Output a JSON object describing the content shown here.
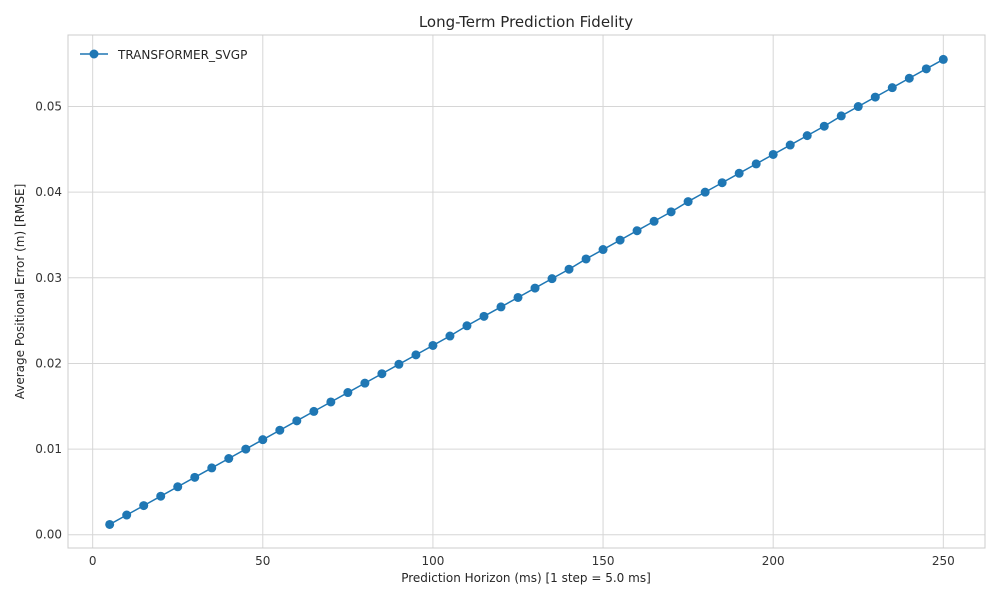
{
  "chart_data": {
    "type": "line",
    "title": "Long-Term Prediction Fidelity",
    "xlabel": "Prediction Horizon (ms)  [1 step = 5.0 ms]",
    "ylabel": "Average Positional Error (m) [RMSE]",
    "xlim": [
      -7.25,
      262.25
    ],
    "ylim": [
      -0.00155,
      0.05835
    ],
    "xticks": [
      0,
      50,
      100,
      150,
      200,
      250
    ],
    "xtick_labels": [
      "0",
      "50",
      "100",
      "150",
      "200",
      "250"
    ],
    "yticks": [
      0.0,
      0.01,
      0.02,
      0.03,
      0.04,
      0.05
    ],
    "ytick_labels": [
      "0.00",
      "0.01",
      "0.02",
      "0.03",
      "0.04",
      "0.05"
    ],
    "grid": true,
    "legend": "top-left",
    "colors": {
      "series": "#1f77b4"
    },
    "x": [
      5,
      10,
      15,
      20,
      25,
      30,
      35,
      40,
      45,
      50,
      55,
      60,
      65,
      70,
      75,
      80,
      85,
      90,
      95,
      100,
      105,
      110,
      115,
      120,
      125,
      130,
      135,
      140,
      145,
      150,
      155,
      160,
      165,
      170,
      175,
      180,
      185,
      190,
      195,
      200,
      205,
      210,
      215,
      220,
      225,
      230,
      235,
      240,
      245,
      250
    ],
    "series": [
      {
        "name": "TRANSFORMER_SVGP",
        "values": [
          0.0012,
          0.0023,
          0.0034,
          0.0045,
          0.0056,
          0.0067,
          0.0078,
          0.0089,
          0.01,
          0.0111,
          0.0122,
          0.0133,
          0.0144,
          0.0155,
          0.0166,
          0.0177,
          0.0188,
          0.0199,
          0.021,
          0.0221,
          0.0232,
          0.0244,
          0.0255,
          0.0266,
          0.0277,
          0.0288,
          0.0299,
          0.031,
          0.0322,
          0.0333,
          0.0344,
          0.0355,
          0.0366,
          0.0377,
          0.0389,
          0.04,
          0.0411,
          0.0422,
          0.0433,
          0.0444,
          0.0455,
          0.0466,
          0.0477,
          0.0489,
          0.05,
          0.0511,
          0.0522,
          0.0533,
          0.0544,
          0.0555
        ]
      }
    ]
  }
}
